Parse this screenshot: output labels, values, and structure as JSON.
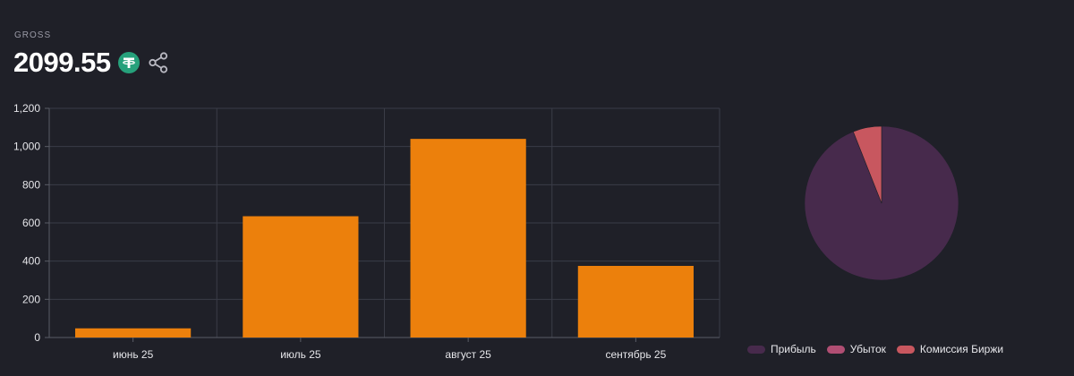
{
  "header": {
    "label": "GROSS",
    "total": "2099.55",
    "currency_icon": "tether-usdt-icon",
    "share_icon": "share-icon"
  },
  "chart_data": [
    {
      "type": "bar",
      "categories": [
        "июнь 25",
        "июль 25",
        "август 25",
        "сентябрь 25"
      ],
      "values": [
        48,
        635,
        1040,
        375
      ],
      "ylim": [
        0,
        1200
      ],
      "yticks": [
        0,
        200,
        400,
        600,
        800,
        1000,
        1200
      ],
      "ytick_labels": [
        "0",
        "200",
        "400",
        "600",
        "800",
        "1,000",
        "1,200"
      ],
      "grid": true,
      "bar_color": "#ec800c"
    },
    {
      "type": "pie",
      "labels": [
        "Прибыль",
        "Убыток",
        "Комиссия Биржи"
      ],
      "values": [
        94,
        0,
        6
      ],
      "colors": [
        "#472a4c",
        "#b04e73",
        "#c8575f"
      ],
      "legend": "bottom"
    }
  ]
}
